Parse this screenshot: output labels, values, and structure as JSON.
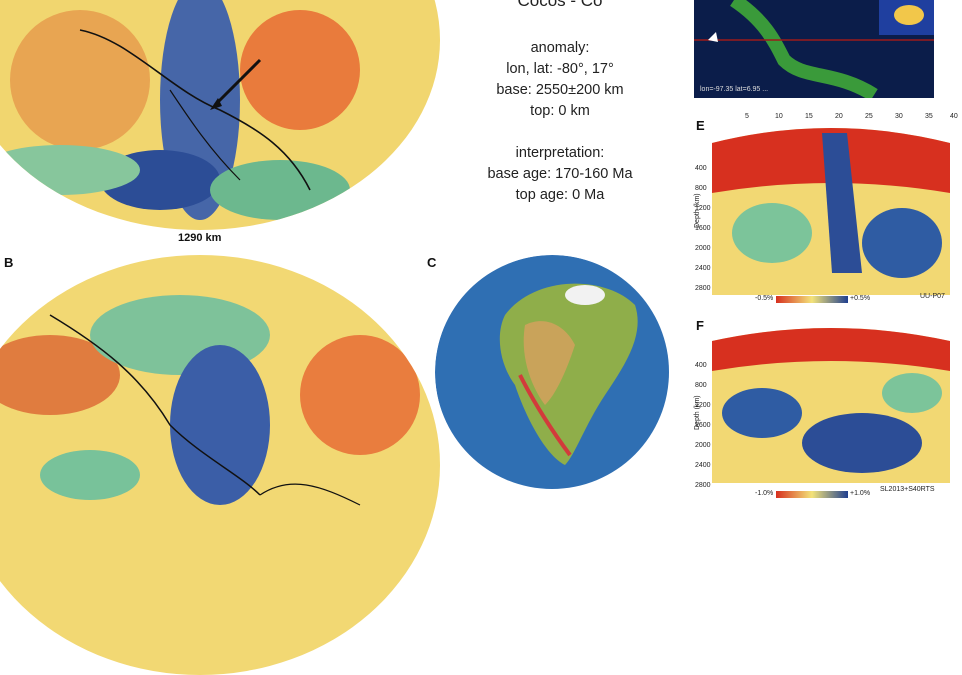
{
  "title": "Cocos - Co",
  "anomaly": {
    "heading": "anomaly:",
    "lonlat": "lon, lat: -80°, 17°",
    "base": "base: 2550±200 km",
    "top": "top: 0 km"
  },
  "interpretation": {
    "heading": "interpretation:",
    "base_age": "base age: 170-160 Ma",
    "top_age": "top age: 0 Ma"
  },
  "panel_a_depth": "1290 km",
  "panel_letters": {
    "b": "B",
    "c": "C",
    "e": "E",
    "f": "F"
  },
  "map_caption": "lon=-97.35 lat=6.95 ...",
  "section_e": {
    "ticks_top": [
      "5",
      "10",
      "15",
      "20",
      "25",
      "30",
      "35",
      "40"
    ],
    "depth_ticks": [
      "400",
      "800",
      "1200",
      "1600",
      "2000",
      "2400",
      "2800"
    ],
    "ylabel": "Depth (km)",
    "scale_min": "-0.5%",
    "scale_max": "+0.5%",
    "model": "UU-P07"
  },
  "section_f": {
    "depth_ticks": [
      "400",
      "800",
      "1200",
      "1600",
      "2000",
      "2400",
      "2800"
    ],
    "ylabel": "Depth (km)",
    "scale_min": "-1.0%",
    "scale_max": "+1.0%",
    "model": "SL2013+S40RTS"
  },
  "colors": {
    "red": "#d7301f",
    "orange": "#f08c3a",
    "yellow": "#f3e37a",
    "green": "#7cc49a",
    "blue": "#1f3f8f"
  }
}
